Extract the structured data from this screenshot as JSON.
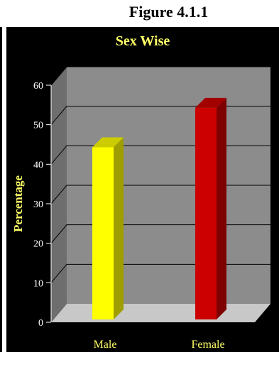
{
  "figure_label": "Figure 4.1.1",
  "chart_data": {
    "type": "bar",
    "title": "Sex Wise",
    "xlabel": "",
    "ylabel": "Percentage",
    "categories": [
      "Male",
      "Female"
    ],
    "values": [
      45,
      55
    ],
    "ylim": [
      0,
      60
    ],
    "yticks": [
      0,
      10,
      20,
      30,
      40,
      50,
      60
    ],
    "grid": true,
    "legend": "none",
    "colors": [
      "#ffff00",
      "#cc0000"
    ]
  },
  "colors": {
    "background": "#000000",
    "back_wall": "#8c8c8c",
    "side_wall": "#6e6e6e",
    "floor": "#c8c8c8",
    "title_text": "#ffff66",
    "tick_text": "#ffffff"
  }
}
